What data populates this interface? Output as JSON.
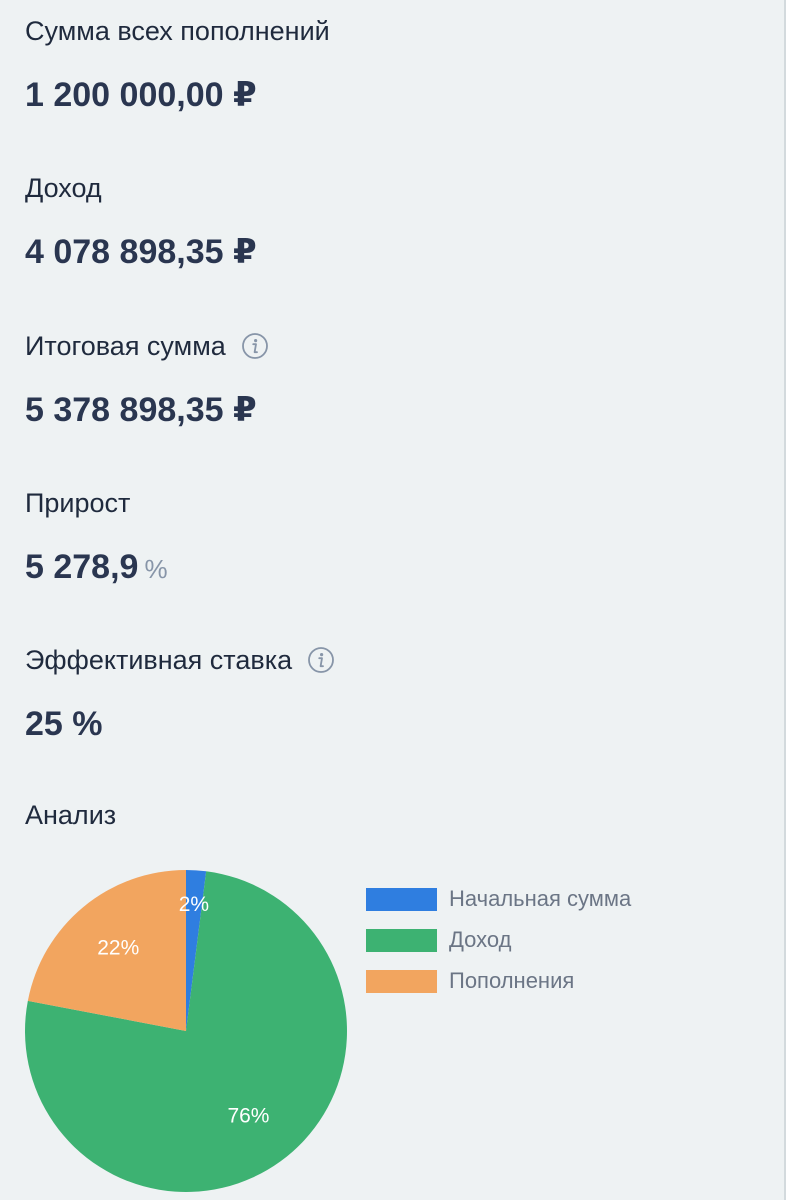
{
  "stats": [
    {
      "label": "Сумма всех пополнений",
      "value": "1 200 000,00 ₽",
      "unit": "",
      "info": false
    },
    {
      "label": "Доход",
      "value": "4 078 898,35 ₽",
      "unit": "",
      "info": false
    },
    {
      "label": "Итоговая сумма",
      "value": "5 378 898,35 ₽",
      "unit": "",
      "info": true
    },
    {
      "label": "Прирост",
      "value": "5 278,9",
      "unit": "%",
      "info": false
    },
    {
      "label": "Эффективная ставка",
      "value": "25 %",
      "unit": "",
      "info": true
    }
  ],
  "analysis": {
    "title": "Анализ"
  },
  "chart_data": {
    "type": "pie",
    "slices": [
      {
        "name": "Начальная сумма",
        "value": 2,
        "label": "2%",
        "color": "#2f7ee0"
      },
      {
        "name": "Доход",
        "value": 76,
        "label": "76%",
        "color": "#3db272"
      },
      {
        "name": "Пополнения",
        "value": 22,
        "label": "22%",
        "color": "#f2a55f"
      }
    ],
    "legend_position": "right"
  },
  "icons": {
    "info": "info-icon"
  }
}
